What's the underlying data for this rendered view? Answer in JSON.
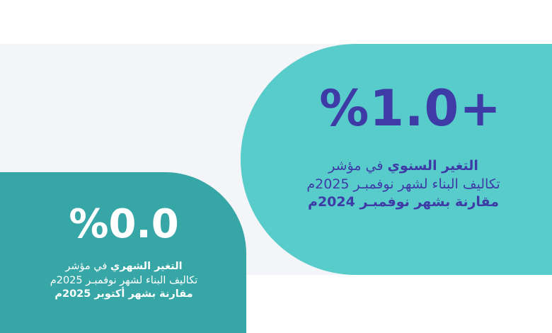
{
  "colors": {
    "right_panel": "#58cbcb",
    "left_panel": "#37a6a6",
    "accent_text": "#3e3aa6",
    "background_band": "#f4f5f9"
  },
  "annual": {
    "value": "%1.0+",
    "label_bold": "التغير السنوي",
    "label_rest": " في مؤشر",
    "line2": "تكاليف البناء لشهر نوفمبـر 2025م",
    "line3": "مقارنة بشهر نوفمبـر 2024م"
  },
  "monthly": {
    "value": "%0.0",
    "label_bold": "التغير الشهري",
    "label_rest": " في مؤشر",
    "line2": "تكاليف البناء لشهر نوفمبـر 2025م",
    "line3": "مقارنة بشهر أكتوبر 2025م"
  }
}
